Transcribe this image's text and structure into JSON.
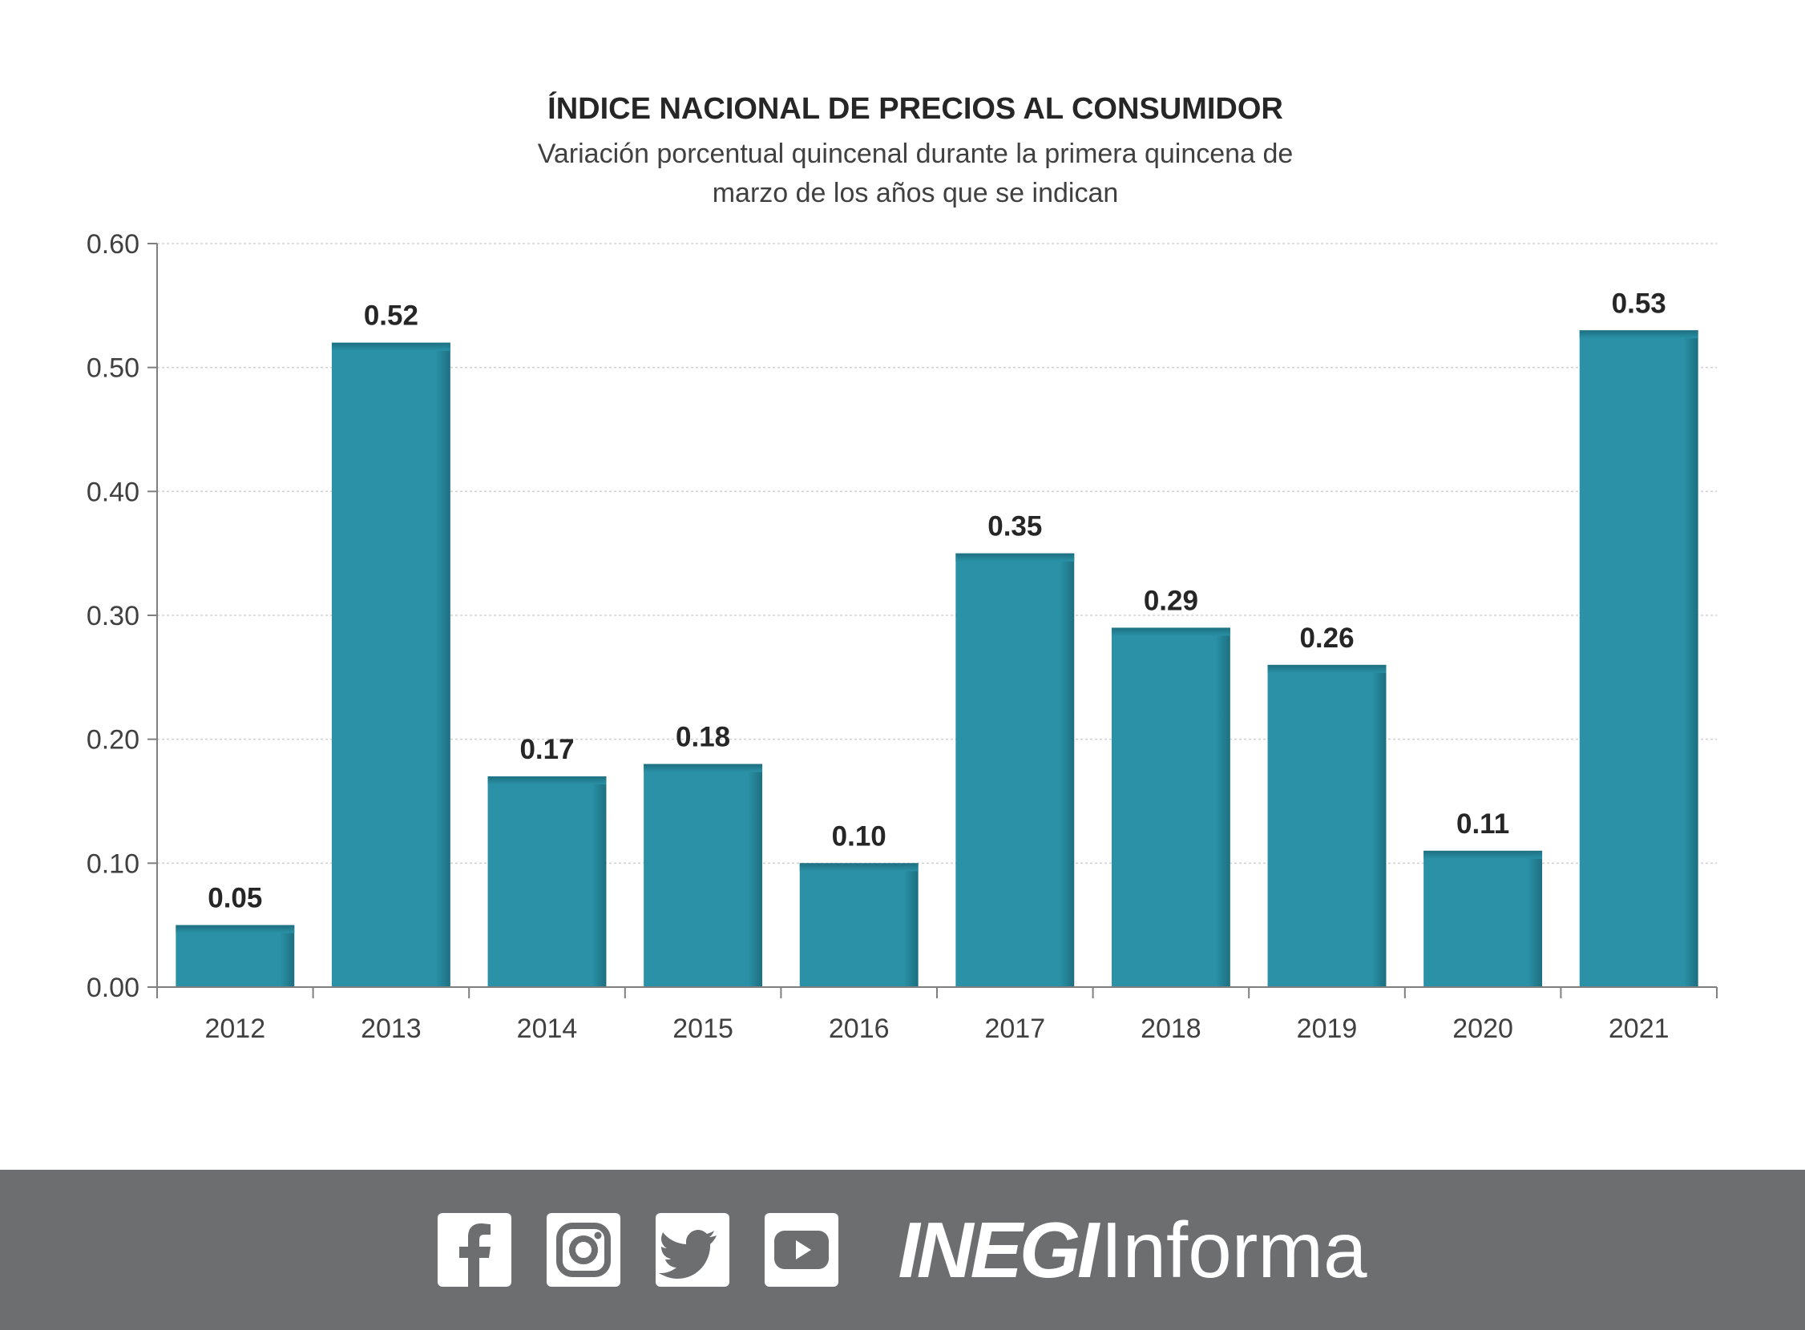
{
  "chart_data": {
    "type": "bar",
    "title": "ÍNDICE NACIONAL DE PRECIOS AL CONSUMIDOR",
    "subtitle_lines": [
      "Variación porcentual quincenal durante la primera quincena de",
      "marzo de los años que se indican"
    ],
    "categories": [
      "2012",
      "2013",
      "2014",
      "2015",
      "2016",
      "2017",
      "2018",
      "2019",
      "2020",
      "2021"
    ],
    "values": [
      0.05,
      0.52,
      0.17,
      0.18,
      0.1,
      0.35,
      0.29,
      0.26,
      0.11,
      0.53
    ],
    "data_labels": [
      "0.05",
      "0.52",
      "0.17",
      "0.18",
      "0.10",
      "0.35",
      "0.29",
      "0.26",
      "0.11",
      "0.53"
    ],
    "ylim": [
      0,
      0.6
    ],
    "yticks": [
      0,
      0.1,
      0.2,
      0.3,
      0.4,
      0.5,
      0.6
    ],
    "ytick_labels": [
      "0.00",
      "0.10",
      "0.20",
      "0.30",
      "0.40",
      "0.50",
      "0.60"
    ],
    "xlabel": "",
    "ylabel": "",
    "grid": true,
    "bar_color": "#2a91a6",
    "bar_edge_color": "#1d6f80"
  },
  "footer": {
    "icons": [
      "facebook-icon",
      "instagram-icon",
      "twitter-icon",
      "youtube-icon"
    ],
    "brand_bold": "INEGI",
    "brand_light": "Informa",
    "background": "#6d6e70"
  }
}
